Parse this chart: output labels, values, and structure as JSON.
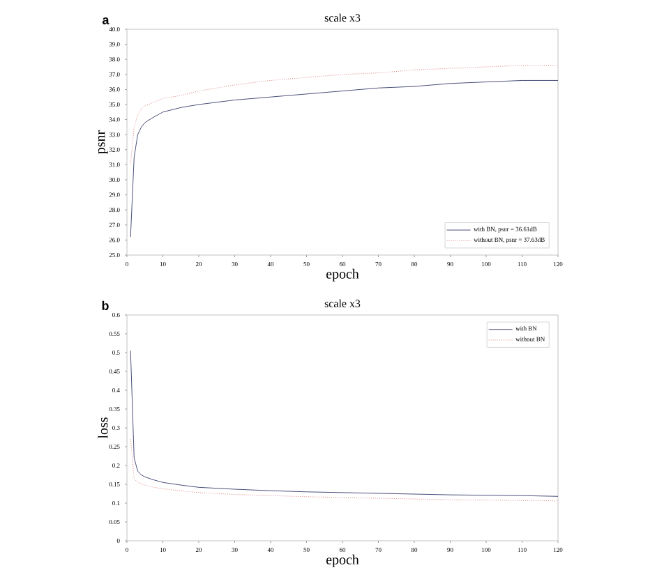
{
  "chart_data": [
    {
      "type": "line",
      "title": "scale x3",
      "xlabel": "epoch",
      "ylabel": "psnr",
      "annotations": [
        "a"
      ],
      "series": [
        {
          "name": "with BN,     psnr = 36.61dB",
          "color": "#4a4e7a",
          "line_style": "solid",
          "x": [
            1,
            2,
            3,
            4,
            5,
            7,
            10,
            15,
            20,
            30,
            40,
            50,
            60,
            70,
            80,
            90,
            100,
            110,
            120
          ],
          "values": [
            26.2,
            31.5,
            33.0,
            33.5,
            33.8,
            34.1,
            34.5,
            34.8,
            35.0,
            35.3,
            35.5,
            35.7,
            35.9,
            36.1,
            36.2,
            36.4,
            36.5,
            36.6,
            36.6
          ]
        },
        {
          "name": "without BN, psnr = 37.63dB",
          "color": "#e08080",
          "line_style": "dotted",
          "x": [
            1,
            2,
            3,
            4,
            5,
            7,
            10,
            15,
            20,
            30,
            40,
            50,
            60,
            70,
            80,
            90,
            100,
            110,
            120
          ],
          "values": [
            31.0,
            33.5,
            34.3,
            34.7,
            34.9,
            35.1,
            35.4,
            35.6,
            35.9,
            36.3,
            36.6,
            36.8,
            37.0,
            37.1,
            37.3,
            37.4,
            37.5,
            37.6,
            37.6
          ]
        }
      ],
      "xlim": [
        0,
        120
      ],
      "xticks": [
        0,
        10,
        20,
        30,
        40,
        50,
        60,
        70,
        80,
        90,
        100,
        110,
        120
      ],
      "ylim": [
        25,
        40
      ],
      "yticks": [
        {
          "value": 25,
          "label": "25.0"
        },
        {
          "value": 26,
          "label": "26.0"
        },
        {
          "value": 27,
          "label": "27.0"
        },
        {
          "value": 28,
          "label": "28.0"
        },
        {
          "value": 29,
          "label": "29.0"
        },
        {
          "value": 30,
          "label": "30.0"
        },
        {
          "value": 31,
          "label": "31.0"
        },
        {
          "value": 32,
          "label": "32.0"
        },
        {
          "value": 33,
          "label": "33.0"
        },
        {
          "value": 34,
          "label": "34.0"
        },
        {
          "value": 35,
          "label": "35.0"
        },
        {
          "value": 36,
          "label": "36.0"
        },
        {
          "value": 37,
          "label": "37.0"
        },
        {
          "value": 38,
          "label": "38.0"
        },
        {
          "value": 39,
          "label": "39.0"
        },
        {
          "value": 40,
          "label": "40.0"
        }
      ],
      "legend": "bottom right",
      "marker": "none"
    },
    {
      "type": "line",
      "title": "scale x3",
      "xlabel": "epoch",
      "ylabel": "loss",
      "annotations": [
        "b"
      ],
      "series": [
        {
          "name": "with BN",
          "color": "#4a4e7a",
          "line_style": "solid",
          "x": [
            1,
            2,
            3,
            4,
            5,
            7,
            10,
            15,
            20,
            30,
            40,
            50,
            60,
            70,
            80,
            90,
            100,
            110,
            120
          ],
          "values": [
            0.505,
            0.22,
            0.185,
            0.175,
            0.17,
            0.163,
            0.155,
            0.148,
            0.142,
            0.137,
            0.133,
            0.13,
            0.128,
            0.126,
            0.124,
            0.122,
            0.121,
            0.12,
            0.118
          ]
        },
        {
          "name": "without BN",
          "color": "#e08080",
          "line_style": "dotted",
          "x": [
            1,
            2,
            3,
            5,
            7,
            10,
            15,
            20,
            30,
            40,
            50,
            60,
            70,
            80,
            90,
            100,
            110,
            120
          ],
          "values": [
            0.27,
            0.165,
            0.155,
            0.148,
            0.143,
            0.138,
            0.133,
            0.128,
            0.123,
            0.12,
            0.117,
            0.115,
            0.113,
            0.111,
            0.109,
            0.108,
            0.107,
            0.106
          ]
        }
      ],
      "xlim": [
        0,
        120
      ],
      "xticks": [
        0,
        10,
        20,
        30,
        40,
        50,
        60,
        70,
        80,
        90,
        100,
        110,
        120
      ],
      "ylim": [
        0,
        0.6
      ],
      "yticks": [
        0,
        0.05,
        0.1,
        0.15,
        0.2,
        0.25,
        0.3,
        0.35,
        0.4,
        0.45,
        0.5,
        0.55,
        0.6
      ],
      "legend": "top right",
      "marker": "none"
    }
  ]
}
